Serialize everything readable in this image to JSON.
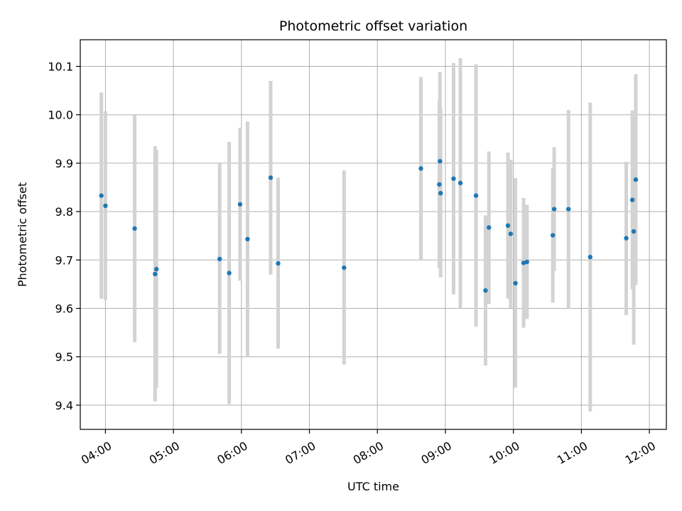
{
  "chart_data": {
    "type": "scatter",
    "title": "Photometric offset variation",
    "xlabel": "UTC time",
    "ylabel": "Photometric offset",
    "x_unit": "time of day (decimal hours, UTC)",
    "xlim": [
      3.63,
      12.25
    ],
    "ylim": [
      9.35,
      10.155
    ],
    "xticks": [
      {
        "value": 4,
        "label": "04:00"
      },
      {
        "value": 5,
        "label": "05:00"
      },
      {
        "value": 6,
        "label": "06:00"
      },
      {
        "value": 7,
        "label": "07:00"
      },
      {
        "value": 8,
        "label": "08:00"
      },
      {
        "value": 9,
        "label": "09:00"
      },
      {
        "value": 10,
        "label": "10:00"
      },
      {
        "value": 11,
        "label": "11:00"
      },
      {
        "value": 12,
        "label": "12:00"
      }
    ],
    "yticks": [
      {
        "value": 9.4,
        "label": "9.4"
      },
      {
        "value": 9.5,
        "label": "9.5"
      },
      {
        "value": 9.6,
        "label": "9.6"
      },
      {
        "value": 9.7,
        "label": "9.7"
      },
      {
        "value": 9.8,
        "label": "9.8"
      },
      {
        "value": 9.9,
        "label": "9.9"
      },
      {
        "value": 10.0,
        "label": "10.0"
      },
      {
        "value": 10.1,
        "label": "10.1"
      }
    ],
    "grid": true,
    "point_color": "#1f77b4",
    "errorbar_color": "#d3d3d3",
    "points": [
      {
        "x": 3.94,
        "y": 9.833,
        "ylow": 9.62,
        "yhigh": 10.046
      },
      {
        "x": 4.0,
        "y": 9.812,
        "ylow": 9.617,
        "yhigh": 10.007
      },
      {
        "x": 4.43,
        "y": 9.765,
        "ylow": 9.53,
        "yhigh": 10.0
      },
      {
        "x": 4.73,
        "y": 9.671,
        "ylow": 9.408,
        "yhigh": 9.935
      },
      {
        "x": 4.75,
        "y": 9.681,
        "ylow": 9.436,
        "yhigh": 9.927
      },
      {
        "x": 5.68,
        "y": 9.702,
        "ylow": 9.506,
        "yhigh": 9.899
      },
      {
        "x": 5.82,
        "y": 9.673,
        "ylow": 9.402,
        "yhigh": 9.944
      },
      {
        "x": 5.98,
        "y": 9.815,
        "ylow": 9.657,
        "yhigh": 9.973
      },
      {
        "x": 6.09,
        "y": 9.743,
        "ylow": 9.5,
        "yhigh": 9.986
      },
      {
        "x": 6.43,
        "y": 9.87,
        "ylow": 9.67,
        "yhigh": 10.07
      },
      {
        "x": 6.54,
        "y": 9.693,
        "ylow": 9.517,
        "yhigh": 9.87
      },
      {
        "x": 7.51,
        "y": 9.684,
        "ylow": 9.484,
        "yhigh": 9.885
      },
      {
        "x": 8.64,
        "y": 9.889,
        "ylow": 9.7,
        "yhigh": 10.078
      },
      {
        "x": 8.91,
        "y": 9.856,
        "ylow": 9.683,
        "yhigh": 10.029
      },
      {
        "x": 8.92,
        "y": 9.904,
        "ylow": 9.72,
        "yhigh": 10.088
      },
      {
        "x": 8.93,
        "y": 9.838,
        "ylow": 9.664,
        "yhigh": 10.012
      },
      {
        "x": 9.12,
        "y": 9.868,
        "ylow": 9.629,
        "yhigh": 10.107
      },
      {
        "x": 9.22,
        "y": 9.859,
        "ylow": 9.6,
        "yhigh": 10.117
      },
      {
        "x": 9.45,
        "y": 9.833,
        "ylow": 9.562,
        "yhigh": 10.104
      },
      {
        "x": 9.59,
        "y": 9.637,
        "ylow": 9.482,
        "yhigh": 9.792
      },
      {
        "x": 9.64,
        "y": 9.767,
        "ylow": 9.609,
        "yhigh": 9.924
      },
      {
        "x": 9.92,
        "y": 9.771,
        "ylow": 9.62,
        "yhigh": 9.922
      },
      {
        "x": 9.96,
        "y": 9.754,
        "ylow": 9.601,
        "yhigh": 9.907
      },
      {
        "x": 10.03,
        "y": 9.652,
        "ylow": 9.436,
        "yhigh": 9.869
      },
      {
        "x": 10.15,
        "y": 9.694,
        "ylow": 9.56,
        "yhigh": 9.828
      },
      {
        "x": 10.2,
        "y": 9.696,
        "ylow": 9.578,
        "yhigh": 9.814
      },
      {
        "x": 10.58,
        "y": 9.751,
        "ylow": 9.612,
        "yhigh": 9.89
      },
      {
        "x": 10.6,
        "y": 9.805,
        "ylow": 9.677,
        "yhigh": 9.933
      },
      {
        "x": 10.81,
        "y": 9.805,
        "ylow": 9.6,
        "yhigh": 10.01
      },
      {
        "x": 11.13,
        "y": 9.706,
        "ylow": 9.387,
        "yhigh": 10.025
      },
      {
        "x": 11.66,
        "y": 9.745,
        "ylow": 9.586,
        "yhigh": 9.903
      },
      {
        "x": 11.75,
        "y": 9.824,
        "ylow": 9.639,
        "yhigh": 10.009
      },
      {
        "x": 11.77,
        "y": 9.759,
        "ylow": 9.525,
        "yhigh": 9.992
      },
      {
        "x": 11.8,
        "y": 9.866,
        "ylow": 9.648,
        "yhigh": 10.084
      }
    ]
  }
}
